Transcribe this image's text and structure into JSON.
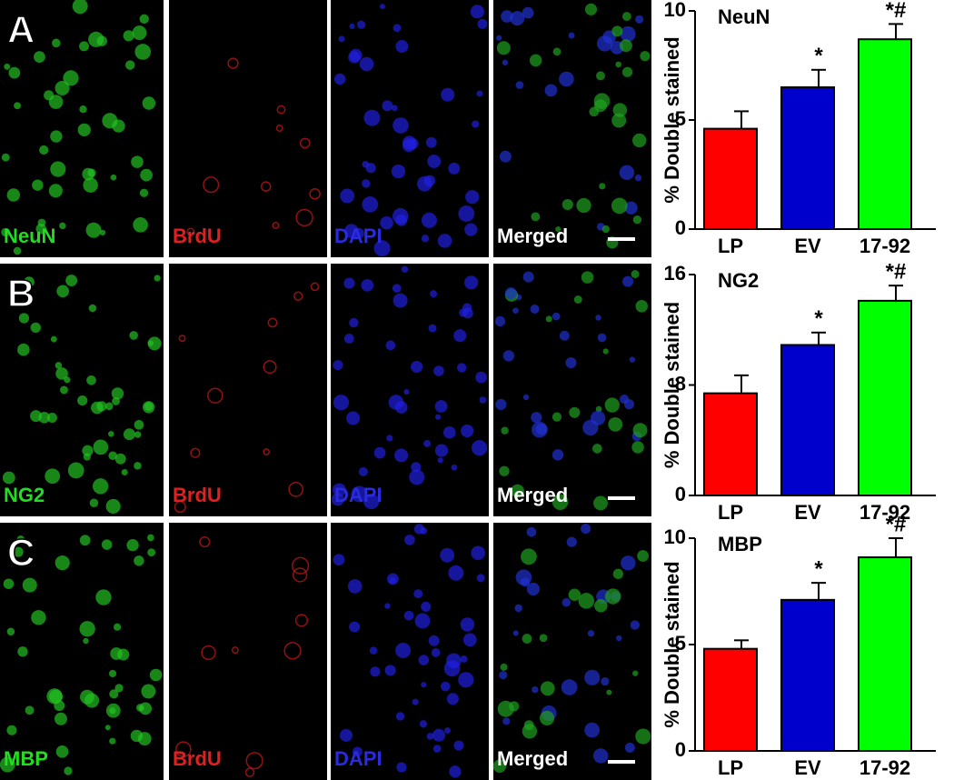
{
  "panels": [
    {
      "letter": "A",
      "labels": [
        "NeuN",
        "BrdU",
        "DAPI",
        "Merged"
      ]
    },
    {
      "letter": "B",
      "labels": [
        "NG2",
        "BrdU",
        "DAPI",
        "Merged"
      ]
    },
    {
      "letter": "C",
      "labels": [
        "MBP",
        "BrdU",
        "DAPI",
        "Merged"
      ]
    }
  ],
  "chart_data": [
    {
      "type": "bar",
      "title": "NeuN",
      "y_label": "% Double stained",
      "categories": [
        "LP",
        "EV",
        "17-92"
      ],
      "values": [
        4.6,
        6.5,
        8.7
      ],
      "errors": [
        0.8,
        0.8,
        0.7
      ],
      "annotations": [
        null,
        "*",
        "*#"
      ],
      "colors": [
        "#ff0000",
        "#0000cc",
        "#00ff00"
      ],
      "ylim": [
        0,
        10
      ],
      "yticks": [
        0,
        5,
        10
      ]
    },
    {
      "type": "bar",
      "title": "NG2",
      "y_label": "% Double stained",
      "categories": [
        "LP",
        "EV",
        "17-92"
      ],
      "values": [
        7.4,
        10.9,
        14.1
      ],
      "errors": [
        1.3,
        0.9,
        1.1
      ],
      "annotations": [
        null,
        "*",
        "*#"
      ],
      "colors": [
        "#ff0000",
        "#0000cc",
        "#00ff00"
      ],
      "ylim": [
        0,
        16
      ],
      "yticks": [
        0,
        8,
        16
      ]
    },
    {
      "type": "bar",
      "title": "MBP",
      "y_label": "% Double stained",
      "categories": [
        "LP",
        "EV",
        "17-92"
      ],
      "values": [
        4.8,
        7.1,
        9.1
      ],
      "errors": [
        0.4,
        0.8,
        0.9
      ],
      "annotations": [
        null,
        "*",
        "*#"
      ],
      "colors": [
        "#ff0000",
        "#0000cc",
        "#00ff00"
      ],
      "ylim": [
        0,
        10
      ],
      "yticks": [
        0,
        5,
        10
      ]
    }
  ]
}
